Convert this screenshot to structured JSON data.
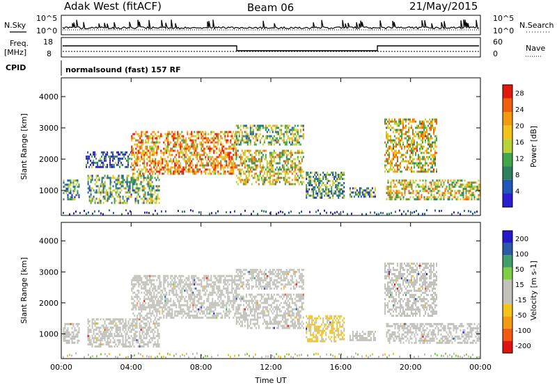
{
  "header": {
    "station": "Adak West (fitACF)",
    "beam": "Beam 06",
    "date": "21/May/2015"
  },
  "nsky_panel": {
    "left_label": "N.Sky",
    "right_label": "N.Search",
    "left_ticks": [
      "10^5",
      "10^0"
    ],
    "right_ticks": [
      "10^5",
      "10^0"
    ]
  },
  "freq_panel": {
    "left_label_1": "Freq.",
    "left_label_2": "[MHz]",
    "right_label": "Nave",
    "left_ticks": [
      "18",
      "8"
    ],
    "right_ticks": [
      "60",
      "0"
    ],
    "cpid_label": "CPID",
    "cpid_text": "normalsound (fast) 157 RF"
  },
  "colors": {
    "power": [
      "#2a1ecf",
      "#1f58b8",
      "#2f8060",
      "#43a64a",
      "#b9d23a",
      "#f2c31b",
      "#f39a10",
      "#f0600c",
      "#e01a0a"
    ],
    "velocity": [
      "#e0140e",
      "#f25b10",
      "#f59a10",
      "#f5c418",
      "#c2c2ba",
      "#c2c2ba",
      "#7fcf45",
      "#3f9e6a",
      "#2a5aa8",
      "#2418c8"
    ]
  },
  "chart_data": [
    {
      "type": "heatmap",
      "title": "",
      "xlabel": "",
      "ylabel": "Slant Range [km]",
      "x_ticks": [
        "00:00",
        "04:00",
        "08:00",
        "12:00",
        "16:00",
        "20:00",
        "00:00"
      ],
      "y_ticks": [
        "1000",
        "2000",
        "3000",
        "4000"
      ],
      "xlim": [
        0,
        24
      ],
      "ylim": [
        200,
        4600
      ],
      "colorbar": {
        "label": "Power [dB]",
        "ticks": [
          "4",
          "8",
          "12",
          "16",
          "20",
          "24",
          "28"
        ],
        "range": [
          0,
          30
        ]
      },
      "echo_regions": [
        {
          "t0": 0.1,
          "t1": 1.0,
          "r0": 700,
          "r1": 1350,
          "level": 0.3
        },
        {
          "t0": 1.5,
          "t1": 5.6,
          "r0": 600,
          "r1": 1500,
          "level": 0.4
        },
        {
          "t0": 1.4,
          "t1": 4.0,
          "r0": 1750,
          "r1": 2250,
          "level": 0.2
        },
        {
          "t0": 4.0,
          "t1": 10.0,
          "r0": 1500,
          "r1": 2900,
          "level": 0.7
        },
        {
          "t0": 10.0,
          "t1": 13.9,
          "r0": 1200,
          "r1": 2300,
          "level": 0.55
        },
        {
          "t0": 10.0,
          "t1": 13.9,
          "r0": 2450,
          "r1": 3100,
          "level": 0.45
        },
        {
          "t0": 14.0,
          "t1": 16.2,
          "r0": 750,
          "r1": 1600,
          "level": 0.35
        },
        {
          "t0": 16.5,
          "t1": 18.0,
          "r0": 800,
          "r1": 1100,
          "level": 0.3
        },
        {
          "t0": 18.5,
          "t1": 21.5,
          "r0": 1600,
          "r1": 3300,
          "level": 0.6
        },
        {
          "t0": 18.6,
          "t1": 24.0,
          "r0": 700,
          "r1": 1350,
          "level": 0.55
        }
      ]
    },
    {
      "type": "heatmap",
      "title": "",
      "xlabel": "Time UT",
      "ylabel": "Slant Range [km]",
      "x_ticks": [
        "00:00",
        "04:00",
        "08:00",
        "12:00",
        "16:00",
        "20:00",
        "00:00"
      ],
      "y_ticks": [
        "1000",
        "2000",
        "3000",
        "4000"
      ],
      "xlim": [
        0,
        24
      ],
      "ylim": [
        200,
        4600
      ],
      "colorbar": {
        "label": "Velocity [m s-1]",
        "ticks": [
          "200",
          "100",
          "50",
          "15",
          "-15",
          "-50",
          "-100",
          "-200"
        ],
        "range": [
          -250,
          250
        ]
      },
      "echo_regions": [
        {
          "t0": 0.1,
          "t1": 1.0,
          "r0": 700,
          "r1": 1350,
          "vel": 0
        },
        {
          "t0": 1.5,
          "t1": 5.6,
          "r0": 600,
          "r1": 1500,
          "vel": 0
        },
        {
          "t0": 4.0,
          "t1": 10.0,
          "r0": 1500,
          "r1": 2900,
          "vel": 0
        },
        {
          "t0": 10.0,
          "t1": 13.9,
          "r0": 1200,
          "r1": 2300,
          "vel": 0
        },
        {
          "t0": 10.0,
          "t1": 13.9,
          "r0": 2450,
          "r1": 3100,
          "vel": 0
        },
        {
          "t0": 14.0,
          "t1": 16.2,
          "r0": 750,
          "r1": 1600,
          "vel": -60
        },
        {
          "t0": 16.5,
          "t1": 18.0,
          "r0": 800,
          "r1": 1100,
          "vel": 0
        },
        {
          "t0": 18.5,
          "t1": 21.5,
          "r0": 1600,
          "r1": 3300,
          "vel": 20
        },
        {
          "t0": 18.6,
          "t1": 24.0,
          "r0": 700,
          "r1": 1350,
          "vel": 0
        }
      ]
    }
  ]
}
